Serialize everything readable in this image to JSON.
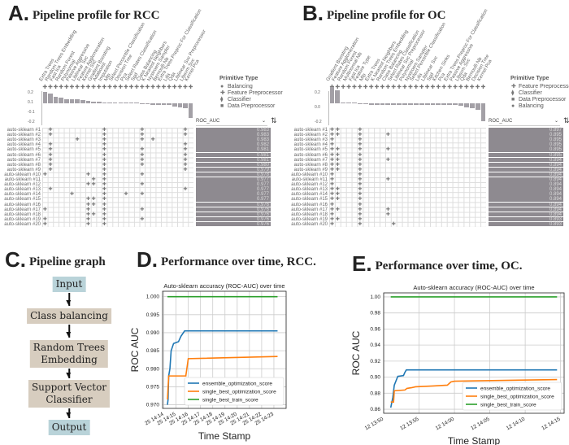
{
  "panels": {
    "a": {
      "letter": "A.",
      "title": "Pipeline profile for RCC"
    },
    "b": {
      "letter": "B.",
      "title": "Pipeline profile for OC"
    },
    "c": {
      "letter": "C.",
      "title": "Pipeline graph"
    },
    "d": {
      "letter": "D.",
      "title": "Performance over time, RCC."
    },
    "e": {
      "letter": "E.",
      "title": "Performance over time, OC."
    }
  },
  "profile_a": {
    "columns": [
      "Extra Trees",
      "Random Trees Embedding",
      "Fast Ica",
      "Random Forest",
      "Polynomial",
      "Passive Aggressive",
      "Liblinear Svc",
      "Feature Agglomeration",
      "Kernel Svc",
      "Gradient Boosting",
      "Adaboost",
      "Imputation",
      "Mlp",
      "Select Percentile Classification",
      "Decision Tree",
      "Pca",
      "Select Rates Classification",
      "Sgd",
      "Class Balancing",
      "K Nearest Neighbors",
      "Nystroem Sampler",
      "Bernoulli Nb",
      "Extra Trees Preproc For Classification",
      "Lda",
      "Qda",
      "Liblinear Svc Preprocessor",
      "Libsvm Svc",
      "Kernel Pca"
    ],
    "yticks": [
      "0.2",
      "0.1",
      "-0.1",
      "-0.2"
    ],
    "legend_title": "Primitive Type",
    "legend": [
      "Balancing",
      "Feature Preprocessor",
      "Classifier",
      "Data Preprocessor"
    ],
    "metric": "ROC_AUC",
    "rows": [
      {
        "name": "auto-sklearn #1",
        "score": "0.983",
        "cols": [
          1,
          11,
          18,
          26
        ]
      },
      {
        "name": "auto-sklearn #2",
        "score": "0.983",
        "cols": [
          1,
          11,
          18,
          26
        ]
      },
      {
        "name": "auto-sklearn #3",
        "score": "0.983",
        "cols": [
          6,
          11,
          18,
          20
        ]
      },
      {
        "name": "auto-sklearn #4",
        "score": "0.982",
        "cols": [
          1,
          11,
          26
        ]
      },
      {
        "name": "auto-sklearn #5",
        "score": "0.981",
        "cols": [
          1,
          11,
          18,
          26
        ]
      },
      {
        "name": "auto-sklearn #6",
        "score": "0.981",
        "cols": [
          1,
          11,
          18,
          26
        ]
      },
      {
        "name": "auto-sklearn #7",
        "score": "0.981",
        "cols": [
          1,
          11,
          18,
          26
        ]
      },
      {
        "name": "auto-sklearn #8",
        "score": "0.980",
        "cols": [
          1,
          11,
          18,
          26
        ]
      },
      {
        "name": "auto-sklearn #9",
        "score": "0.979",
        "cols": [
          1,
          11,
          26
        ]
      },
      {
        "name": "auto-sklearn #10",
        "score": "0.978",
        "cols": [
          0,
          8,
          11,
          18
        ]
      },
      {
        "name": "auto-sklearn #11",
        "score": "0.977",
        "cols": [
          9,
          11
        ]
      },
      {
        "name": "auto-sklearn #12",
        "score": "0.977",
        "cols": [
          8,
          9,
          11,
          18
        ]
      },
      {
        "name": "auto-sklearn #13",
        "score": "0.977",
        "cols": [
          1,
          11,
          26
        ]
      },
      {
        "name": "auto-sklearn #14",
        "score": "0.977",
        "cols": [
          5,
          11,
          15,
          18
        ]
      },
      {
        "name": "auto-sklearn #15",
        "score": "0.977",
        "cols": [
          8,
          9,
          11
        ]
      },
      {
        "name": "auto-sklearn #16",
        "score": "0.976",
        "cols": [
          8,
          9,
          11
        ]
      },
      {
        "name": "auto-sklearn #17",
        "score": "0.976",
        "cols": [
          0,
          8,
          11,
          18
        ]
      },
      {
        "name": "auto-sklearn #18",
        "score": "0.976",
        "cols": [
          8,
          9,
          11
        ]
      },
      {
        "name": "auto-sklearn #19",
        "score": "0.976",
        "cols": [
          0,
          8,
          11,
          18
        ]
      },
      {
        "name": "auto-sklearn #20",
        "score": "0.976",
        "cols": [
          0,
          8,
          11
        ]
      }
    ],
    "importance": [
      0.18,
      0.15,
      0.1,
      0.09,
      0.06,
      0.06,
      0.06,
      0.05,
      0.04,
      0.03,
      0.02,
      0.01,
      0.01,
      0.0,
      0.0,
      0.0,
      0.0,
      0.0,
      -0.01,
      -0.01,
      -0.02,
      -0.02,
      -0.02,
      -0.03,
      -0.05,
      -0.06,
      -0.08,
      -0.22
    ]
  },
  "profile_b": {
    "columns": [
      "Gradient Boosting",
      "Feature Agglomeration",
      "Random Forest",
      "Multinomial Nb",
      "Fast Ica",
      "Feature Type",
      "Mlp",
      "Extra Trees",
      "K Nearest Neighbors",
      "Random Trees Embedding",
      "Class Balancing",
      "Select Rates Classification",
      "Liblinear Svc Preprocessor",
      "Polynomial",
      "Nystroem Sampler",
      "Select Percentile Classification",
      "Lda",
      "Liblinear Svc",
      "Sgd",
      "Kitchen Sinks",
      "Pca",
      "Extra Trees Preproc For Classification",
      "Passive Aggressive",
      "Libsvm Svc",
      "Qda",
      "Bernoulli Nb",
      "Decision Tree",
      "Kernel Pca"
    ],
    "yticks": [
      "0.2",
      "0.0",
      "-0.2"
    ],
    "legend_title": "Primitive Type",
    "legend": [
      "Feature Preprocessor",
      "Classifier",
      "Data Preprocessor",
      "Balancing"
    ],
    "metric": "ROC_AUC",
    "rows": [
      {
        "name": "auto-sklearn #1",
        "score": "0.897",
        "cols": [
          0,
          1,
          5
        ]
      },
      {
        "name": "auto-sklearn #2",
        "score": "0.895",
        "cols": [
          0,
          1,
          5,
          10
        ]
      },
      {
        "name": "auto-sklearn #3",
        "score": "0.895",
        "cols": [
          0,
          5
        ]
      },
      {
        "name": "auto-sklearn #4",
        "score": "0.895",
        "cols": [
          0,
          5
        ]
      },
      {
        "name": "auto-sklearn #5",
        "score": "0.895",
        "cols": [
          0,
          1,
          5,
          10
        ]
      },
      {
        "name": "auto-sklearn #6",
        "score": "0.895",
        "cols": [
          0,
          1,
          5
        ]
      },
      {
        "name": "auto-sklearn #7",
        "score": "0.894",
        "cols": [
          0,
          1,
          5,
          10
        ]
      },
      {
        "name": "auto-sklearn #8",
        "score": "0.894",
        "cols": [
          0,
          1,
          5
        ]
      },
      {
        "name": "auto-sklearn #9",
        "score": "0.894",
        "cols": [
          0,
          1,
          5
        ]
      },
      {
        "name": "auto-sklearn #10",
        "score": "0.894",
        "cols": [
          0,
          5
        ]
      },
      {
        "name": "auto-sklearn #11",
        "score": "0.894",
        "cols": [
          0,
          5,
          10
        ]
      },
      {
        "name": "auto-sklearn #12",
        "score": "0.894",
        "cols": [
          0,
          5
        ]
      },
      {
        "name": "auto-sklearn #13",
        "score": "0.894",
        "cols": [
          0,
          1,
          5
        ]
      },
      {
        "name": "auto-sklearn #14",
        "score": "0.894",
        "cols": [
          0,
          1,
          5
        ]
      },
      {
        "name": "auto-sklearn #15",
        "score": "0.894",
        "cols": [
          0,
          1,
          5
        ]
      },
      {
        "name": "auto-sklearn #16",
        "score": "0.894",
        "cols": [
          0,
          5
        ]
      },
      {
        "name": "auto-sklearn #17",
        "score": "0.894",
        "cols": [
          0,
          1,
          5,
          10
        ]
      },
      {
        "name": "auto-sklearn #18",
        "score": "0.894",
        "cols": [
          0,
          5,
          10
        ]
      },
      {
        "name": "auto-sklearn #19",
        "score": "0.893",
        "cols": [
          0,
          1,
          5
        ]
      },
      {
        "name": "auto-sklearn #20",
        "score": "0.893",
        "cols": [
          0,
          5,
          11
        ]
      }
    ],
    "importance": [
      0.25,
      0.2,
      0.01,
      0.0,
      0.0,
      -0.01,
      -0.01,
      -0.02,
      -0.02,
      -0.02,
      -0.02,
      -0.02,
      -0.02,
      -0.02,
      -0.02,
      -0.02,
      -0.02,
      -0.03,
      -0.03,
      -0.03,
      -0.03,
      -0.03,
      -0.03,
      -0.04,
      -0.06,
      -0.08,
      -0.1,
      -0.28
    ]
  },
  "graph": {
    "nodes": [
      {
        "label": "Input",
        "kind": "io"
      },
      {
        "label": "Class balancing",
        "kind": "step"
      },
      {
        "label": "Random Trees\nEmbedding",
        "kind": "step"
      },
      {
        "label": "Support Vector\nClassifier",
        "kind": "step"
      },
      {
        "label": "Output",
        "kind": "io"
      }
    ]
  },
  "chart_data": [
    {
      "type": "line",
      "title": "Auto-sklearn accuracy (ROC-AUC) over time",
      "xlabel": "Time Stamp",
      "ylabel": "ROC AUC",
      "xlim": [
        -0.1,
        10.0
      ],
      "ylim": [
        0.969,
        1.0015
      ],
      "xticks": [
        0,
        1,
        2,
        3,
        4,
        5,
        6,
        7,
        8,
        9
      ],
      "xtick_labels": [
        "25 14:14",
        "25 14:15",
        "25 14:16",
        "25 14:17",
        "25 14:18",
        "25 14:19",
        "25 14:20",
        "25 14:21",
        "25 14:22",
        "25 14:23"
      ],
      "yticks": [
        0.97,
        0.975,
        0.98,
        0.985,
        0.99,
        0.995,
        1.0
      ],
      "ytick_labels": [
        "0.970",
        "0.975",
        "0.980",
        "0.985",
        "0.990",
        "0.995",
        "1.000"
      ],
      "legend_position": "lower-right",
      "grid": true,
      "series": [
        {
          "name": "ensemble_optimization_score",
          "color": "#1f77b4",
          "points": [
            [
              0.3,
              0.97
            ],
            [
              0.35,
              0.9715
            ],
            [
              0.4,
              0.978
            ],
            [
              0.5,
              0.98
            ],
            [
              0.6,
              0.985
            ],
            [
              0.8,
              0.987
            ],
            [
              1.2,
              0.9875
            ],
            [
              1.4,
              0.989
            ],
            [
              1.7,
              0.9905
            ],
            [
              9.3,
              0.9905
            ]
          ]
        },
        {
          "name": "single_best_optimization_score",
          "color": "#ff7f0e",
          "points": [
            [
              0.3,
              0.9715
            ],
            [
              0.4,
              0.978
            ],
            [
              1.8,
              0.978
            ],
            [
              2.0,
              0.9828
            ],
            [
              9.3,
              0.9834
            ]
          ]
        },
        {
          "name": "single_best_train_score",
          "color": "#2ca02c",
          "points": [
            [
              0.3,
              1.0
            ],
            [
              9.3,
              1.0
            ]
          ]
        }
      ]
    },
    {
      "type": "line",
      "title": "Auto-sklearn accuracy (ROC-AUC) over time",
      "xlabel": "Time Stamp",
      "ylabel": "ROC AUC",
      "xlim": [
        0,
        25.5
      ],
      "ylim": [
        0.855,
        1.005
      ],
      "xticks": [
        0,
        5,
        10,
        15,
        20,
        25
      ],
      "xtick_labels": [
        "12 13:50",
        "12 13:55",
        "12 14:00",
        "12 14:05",
        "12 14:10",
        "12 14:15"
      ],
      "yticks": [
        0.86,
        0.88,
        0.9,
        0.92,
        0.94,
        0.96,
        0.98,
        1.0
      ],
      "ytick_labels": [
        "0.86",
        "0.88",
        "0.90",
        "0.92",
        "0.94",
        "0.96",
        "0.98",
        "1.00"
      ],
      "legend_position": "lower-right",
      "grid": true,
      "series": [
        {
          "name": "ensemble_optimization_score",
          "color": "#1f77b4",
          "points": [
            [
              1.0,
              0.862
            ],
            [
              1.3,
              0.875
            ],
            [
              1.5,
              0.89
            ],
            [
              2.0,
              0.901
            ],
            [
              2.8,
              0.902
            ],
            [
              3.0,
              0.906
            ],
            [
              3.2,
              0.909
            ],
            [
              24.5,
              0.909
            ]
          ]
        },
        {
          "name": "single_best_optimization_score",
          "color": "#ff7f0e",
          "points": [
            [
              1.0,
              0.869
            ],
            [
              1.4,
              0.869
            ],
            [
              1.5,
              0.883
            ],
            [
              3.0,
              0.884
            ],
            [
              3.3,
              0.886
            ],
            [
              4.0,
              0.887
            ],
            [
              4.5,
              0.888
            ],
            [
              7.0,
              0.889
            ],
            [
              9.0,
              0.89
            ],
            [
              9.5,
              0.894
            ],
            [
              10.0,
              0.895
            ],
            [
              24.5,
              0.897
            ]
          ]
        },
        {
          "name": "single_best_train_score",
          "color": "#2ca02c",
          "points": [
            [
              1.0,
              1.0
            ],
            [
              24.5,
              1.0
            ]
          ]
        }
      ]
    }
  ]
}
